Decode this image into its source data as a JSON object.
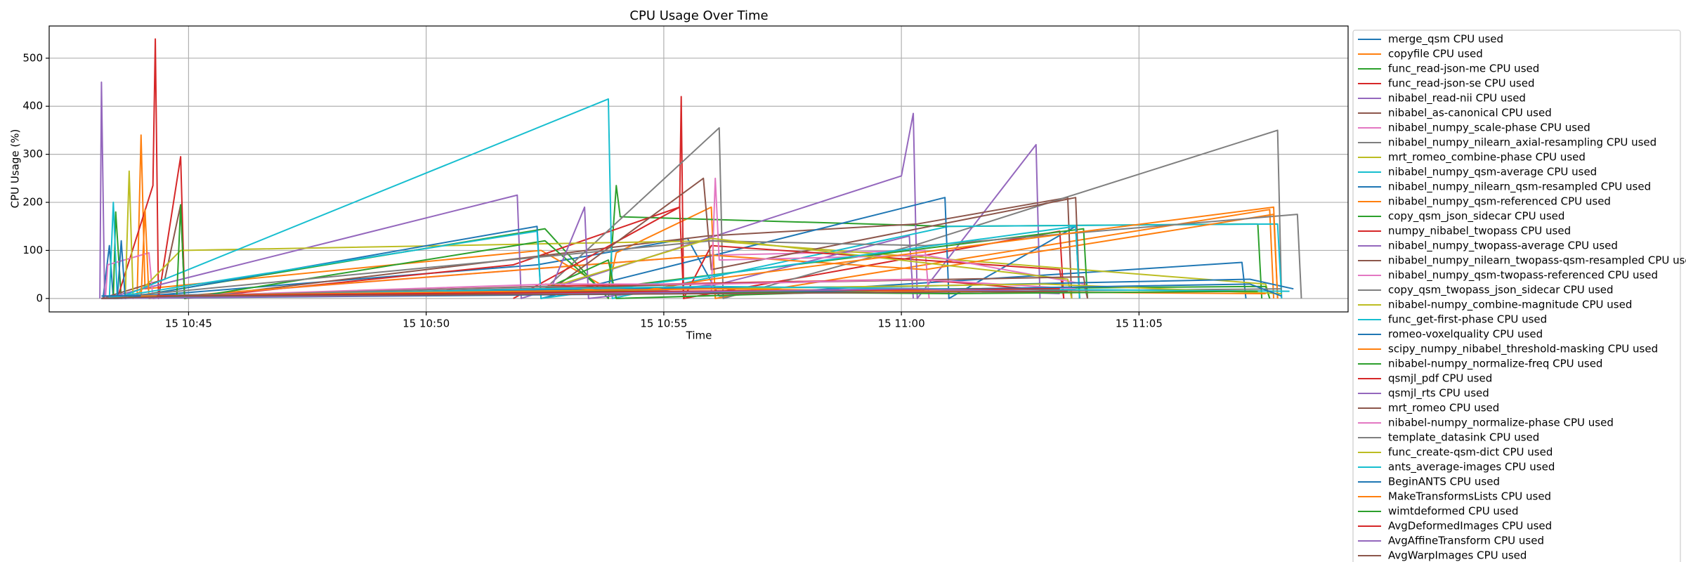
{
  "chart_data": {
    "type": "line",
    "title": "CPU Usage Over Time",
    "x_label": "Time",
    "y_label": "CPU Usage (%)",
    "xlim": [
      "15 10:42:04",
      "15 11:09:24"
    ],
    "xticks": [
      "15 10:45",
      "15 10:50",
      "15 10:55",
      "15 11:00",
      "15 11:05"
    ],
    "ylim": [
      -28,
      567
    ],
    "yticks": [
      0,
      100,
      200,
      300,
      400,
      500
    ],
    "grid": true,
    "legend": "right",
    "series": [
      {
        "name": "merge_qsm CPU used",
        "color": "#1f77b4",
        "x": [
          "15 10:43:12",
          "15 10:43:20",
          "15 10:43:25",
          "15 10:52:20",
          "15 10:55:30",
          "15 10:56:10",
          "15 11:07:10",
          "15 11:07:15"
        ],
        "values": [
          0,
          110,
          0,
          70,
          125,
          5,
          75,
          0
        ]
      },
      {
        "name": "copyfile CPU used",
        "color": "#ff7f0e",
        "x": [
          "15 10:43:55",
          "15 10:44:00",
          "15 10:44:05",
          "15 10:52:25",
          "15 10:53:50",
          "15 10:54:00",
          "15 10:56:00",
          "15 10:56:05",
          "15 11:07:45",
          "15 11:07:50"
        ],
        "values": [
          0,
          340,
          20,
          100,
          20,
          95,
          190,
          0,
          185,
          0
        ]
      },
      {
        "name": "func_read-json-me CPU used",
        "color": "#2ca02c",
        "x": [
          "15 10:43:25",
          "15 10:43:28",
          "15 10:43:35",
          "15 10:52:30",
          "15 10:53:50",
          "15 10:54:00",
          "15 10:54:05",
          "15 11:01:00",
          "15 11:07:30",
          "15 11:07:35"
        ],
        "values": [
          0,
          180,
          0,
          145,
          0,
          235,
          170,
          150,
          155,
          0
        ]
      },
      {
        "name": "func_read-json-se CPU used",
        "color": "#d62728",
        "x": [
          "15 10:43:30",
          "15 10:44:15",
          "15 10:44:18",
          "15 10:44:22",
          "15 10:44:50",
          "15 10:44:55",
          "15 10:51:50",
          "15 10:55:20",
          "15 10:55:22",
          "15 10:55:25",
          "15 11:03:20",
          "15 11:03:25"
        ],
        "values": [
          0,
          235,
          540,
          0,
          295,
          0,
          70,
          190,
          420,
          0,
          140,
          0
        ]
      },
      {
        "name": "nibabel_read-nii CPU used",
        "color": "#9467bd",
        "x": [
          "15 10:43:08",
          "15 10:43:10",
          "15 10:43:14",
          "15 10:51:55",
          "15 10:52:00",
          "15 11:00:00",
          "15 11:00:15",
          "15 11:00:20",
          "15 11:02:50",
          "15 11:02:55"
        ],
        "values": [
          0,
          450,
          0,
          215,
          0,
          255,
          385,
          0,
          320,
          0
        ]
      },
      {
        "name": "nibabel_as-canonical CPU used",
        "color": "#8c564b",
        "x": [
          "15 10:43:10",
          "15 10:44:30",
          "15 10:44:50",
          "15 10:44:55",
          "15 10:55:55",
          "15 11:00:20",
          "15 11:03:30",
          "15 11:03:35"
        ],
        "values": [
          0,
          40,
          195,
          0,
          130,
          155,
          210,
          0
        ]
      },
      {
        "name": "nibabel_numpy_scale-phase CPU used",
        "color": "#e377c2",
        "x": [
          "15 10:43:15",
          "15 10:43:18",
          "15 10:44:10",
          "15 10:44:15",
          "15 10:56:00",
          "15 11:00:30",
          "15 11:00:35"
        ],
        "values": [
          0,
          70,
          95,
          0,
          90,
          100,
          0
        ]
      },
      {
        "name": "nibabel_numpy_nilearn_axial-resampling CPU used",
        "color": "#7f7f7f",
        "x": [
          "15 10:43:10",
          "15 10:52:30",
          "15 10:56:10",
          "15 10:56:15",
          "15 11:00:25",
          "15 11:07:55",
          "15 11:08:00"
        ],
        "values": [
          0,
          20,
          355,
          0,
          115,
          350,
          0
        ]
      },
      {
        "name": "mrt_romeo_combine-phase CPU used",
        "color": "#bcbd22",
        "x": [
          "15 10:43:40",
          "15 10:43:45",
          "15 10:43:50",
          "15 10:44:50",
          "15 10:56:00",
          "15 11:07:40",
          "15 11:07:45"
        ],
        "values": [
          0,
          265,
          0,
          100,
          120,
          30,
          0
        ]
      },
      {
        "name": "nibabel_numpy_qsm-average CPU used",
        "color": "#17becf",
        "x": [
          "15 10:43:20",
          "15 10:43:25",
          "15 10:43:30",
          "15 10:53:50",
          "15 10:53:55",
          "15 11:01:00",
          "15 11:07:55",
          "15 11:08:00"
        ],
        "values": [
          0,
          200,
          0,
          415,
          0,
          150,
          155,
          0
        ]
      },
      {
        "name": "nibabel_numpy_nilearn_qsm-resampled CPU used",
        "color": "#1f77b4",
        "x": [
          "15 10:43:30",
          "15 10:43:35",
          "15 10:43:40",
          "15 10:52:20",
          "15 10:52:25",
          "15 11:00:55",
          "15 11:01:00",
          "15 11:03:40",
          "15 11:03:45"
        ],
        "values": [
          0,
          120,
          0,
          150,
          0,
          210,
          0,
          150,
          0
        ]
      },
      {
        "name": "nibabel_numpy_qsm-referenced CPU used",
        "color": "#ff7f0e",
        "x": [
          "15 10:44:00",
          "15 10:44:05",
          "15 10:44:10",
          "15 10:56:00",
          "15 11:00:30",
          "15 11:07:50",
          "15 11:07:55"
        ],
        "values": [
          0,
          185,
          0,
          90,
          60,
          175,
          0
        ]
      },
      {
        "name": "copy_qsm_json_sidecar CPU used",
        "color": "#2ca02c",
        "x": [
          "15 10:44:45",
          "15 10:44:50",
          "15 10:44:55",
          "15 10:52:30",
          "15 10:53:40",
          "15 11:03:50",
          "15 11:03:55"
        ],
        "values": [
          0,
          195,
          0,
          120,
          20,
          145,
          0
        ]
      },
      {
        "name": "numpy_nibabel_twopass CPU used",
        "color": "#d62728",
        "x": [
          "15 10:51:50",
          "15 10:55:20",
          "15 10:55:25",
          "15 10:56:00",
          "15 11:03:20",
          "15 11:03:25"
        ],
        "values": [
          0,
          190,
          0,
          110,
          60,
          0
        ]
      },
      {
        "name": "nibabel_numpy_twopass-average CPU used",
        "color": "#9467bd",
        "x": [
          "15 10:52:40",
          "15 10:53:20",
          "15 10:53:25",
          "15 10:56:10",
          "15 11:00:10",
          "15 11:00:15"
        ],
        "values": [
          30,
          190,
          0,
          30,
          130,
          0
        ]
      },
      {
        "name": "nibabel_numpy_nilearn_twopass-qsm-resampled CPU used",
        "color": "#8c564b",
        "x": [
          "15 10:43:20",
          "15 10:52:40",
          "15 10:55:50",
          "15 10:56:00",
          "15 11:03:40",
          "15 11:03:45"
        ],
        "values": [
          0,
          20,
          250,
          60,
          210,
          0
        ]
      },
      {
        "name": "nibabel_numpy_qsm-twopass-referenced CPU used",
        "color": "#e377c2",
        "x": [
          "15 10:56:00",
          "15 10:56:05",
          "15 10:56:10",
          "15 11:00:30",
          "15 11:03:50",
          "15 11:03:55"
        ],
        "values": [
          10,
          250,
          80,
          90,
          30,
          0
        ]
      },
      {
        "name": "copy_qsm_twopass_json_sidecar CPU used",
        "color": "#7f7f7f",
        "x": [
          "15 10:43:10",
          "15 10:56:00",
          "15 11:00:30",
          "15 11:08:20",
          "15 11:08:25"
        ],
        "values": [
          0,
          120,
          110,
          175,
          0
        ]
      },
      {
        "name": "nibabel-numpy_combine-magnitude CPU used",
        "color": "#bcbd22",
        "x": [
          "15 10:52:30",
          "15 10:56:00",
          "15 11:03:30",
          "15 11:03:35"
        ],
        "values": [
          20,
          125,
          40,
          0
        ]
      },
      {
        "name": "func_get-first-phase CPU used",
        "color": "#17becf",
        "x": [
          "15 10:43:15",
          "15 10:52:20",
          "15 10:52:25",
          "15 11:03:40",
          "15 11:03:45"
        ],
        "values": [
          0,
          140,
          0,
          150,
          0
        ]
      },
      {
        "name": "romeo-voxelquality CPU used",
        "color": "#1f77b4",
        "x": [
          "15 10:43:10",
          "15 10:53:55",
          "15 11:00:00",
          "15 11:07:20",
          "15 11:08:15"
        ],
        "values": [
          5,
          20,
          25,
          40,
          20
        ]
      },
      {
        "name": "scipy_numpy_nibabel_threshold-masking CPU used",
        "color": "#ff7f0e",
        "x": [
          "15 10:52:30",
          "15 10:54:10",
          "15 10:56:00",
          "15 11:07:50",
          "15 11:07:55"
        ],
        "values": [
          30,
          10,
          40,
          190,
          0
        ]
      },
      {
        "name": "nibabel-numpy_normalize-freq CPU used",
        "color": "#2ca02c",
        "x": [
          "15 10:52:30",
          "15 10:53:50",
          "15 10:54:00",
          "15 11:01:00",
          "15 11:07:40",
          "15 11:07:45"
        ],
        "values": [
          20,
          80,
          0,
          20,
          25,
          0
        ]
      },
      {
        "name": "qsmjl_pdf CPU used",
        "color": "#d62728",
        "x": [
          "15 10:43:10",
          "15 10:52:20",
          "15 11:00:20",
          "15 11:03:20"
        ],
        "values": [
          0,
          25,
          40,
          15
        ]
      },
      {
        "name": "qsmjl_rts CPU used",
        "color": "#9467bd",
        "x": [
          "15 10:43:10",
          "15 10:52:40",
          "15 10:56:00",
          "15 11:00:00",
          "15 11:03:20"
        ],
        "values": [
          0,
          10,
          15,
          20,
          10
        ]
      },
      {
        "name": "mrt_romeo CPU used",
        "color": "#8c564b",
        "x": [
          "15 10:43:15",
          "15 10:52:00",
          "15 10:55:50",
          "15 11:03:50",
          "15 11:03:55"
        ],
        "values": [
          0,
          20,
          30,
          45,
          0
        ]
      },
      {
        "name": "nibabel-numpy_normalize-phase CPU used",
        "color": "#e377c2",
        "x": [
          "15 10:43:20",
          "15 10:52:40",
          "15 10:56:10",
          "15 11:00:20",
          "15 11:03:40"
        ],
        "values": [
          0,
          30,
          30,
          40,
          20
        ]
      },
      {
        "name": "template_datasink CPU used",
        "color": "#7f7f7f",
        "x": [
          "15 10:43:10",
          "15 10:52:30",
          "15 10:56:20",
          "15 11:08:00"
        ],
        "values": [
          0,
          25,
          10,
          20
        ]
      },
      {
        "name": "func_create-qsm-dict CPU used",
        "color": "#bcbd22",
        "x": [
          "15 10:43:15",
          "15 10:52:20",
          "15 10:56:00",
          "15 11:03:00",
          "15 11:08:00"
        ],
        "values": [
          0,
          15,
          20,
          30,
          10
        ]
      },
      {
        "name": "ants_average-images CPU used",
        "color": "#17becf",
        "x": [
          "15 10:43:20",
          "15 10:52:20",
          "15 10:56:00",
          "15 11:01:00",
          "15 11:08:10"
        ],
        "values": [
          0,
          20,
          25,
          20,
          15
        ]
      },
      {
        "name": "BeginANTS CPU used",
        "color": "#1f77b4",
        "x": [
          "15 10:43:10",
          "15 10:55:30",
          "15 11:07:20",
          "15 11:08:00"
        ],
        "values": [
          0,
          10,
          30,
          5
        ]
      },
      {
        "name": "MakeTransformsLists CPU used",
        "color": "#ff7f0e",
        "x": [
          "15 10:44:00",
          "15 10:56:00",
          "15 11:00:30",
          "15 11:07:40"
        ],
        "values": [
          5,
          20,
          15,
          10
        ]
      },
      {
        "name": "wimtdeformed CPU used",
        "color": "#2ca02c",
        "x": [
          "15 10:43:25",
          "15 10:54:00",
          "15 11:01:00",
          "15 11:07:30"
        ],
        "values": [
          0,
          15,
          10,
          15
        ]
      },
      {
        "name": "AvgDeformedImages CPU used",
        "color": "#d62728",
        "x": [
          "15 10:44:20",
          "15 10:55:20",
          "15 11:03:20"
        ],
        "values": [
          5,
          15,
          20
        ]
      },
      {
        "name": "AvgAffineTransform CPU used",
        "color": "#9467bd",
        "x": [
          "15 10:43:10",
          "15 10:53:20",
          "15 11:00:10",
          "15 11:02:50"
        ],
        "values": [
          0,
          10,
          20,
          15
        ]
      },
      {
        "name": "AvgWarpImages CPU used",
        "color": "#8c564b",
        "x": [
          "15 10:43:10",
          "15 10:44:50",
          "15 10:56:00",
          "15 11:03:30"
        ],
        "values": [
          0,
          5,
          10,
          15
        ]
      }
    ]
  }
}
